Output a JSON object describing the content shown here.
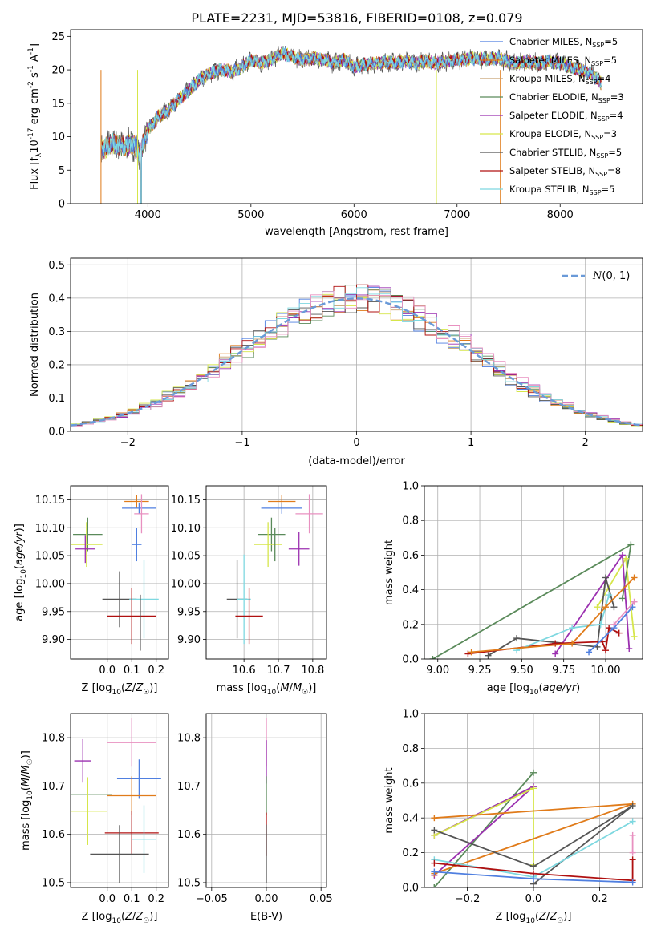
{
  "title": "PLATE=2231, MJD=53816, FIBERID=0108, z=0.079",
  "colors": {
    "chabrier_miles": "#4f7fe0",
    "salpeter_miles": "#e07b1a",
    "kroupa_miles": "#c8a070",
    "chabrier_elodie": "#5a8a5a",
    "salpeter_elodie": "#9b30b0",
    "kroupa_elodie": "#d6e64a",
    "chabrier_stelib": "#555555",
    "salpeter_stelib": "#b01010",
    "kroupa_stelib": "#7ed8e0",
    "extra_pink": "#e890c0",
    "gauss": "#6a9ad8",
    "grid": "#b0b0b0"
  },
  "chart_data": [
    {
      "type": "line",
      "id": "spectrum",
      "xlabel": "wavelength [Angstrom, rest frame]",
      "ylabel": "Flux [f",
      "ylabel_parts": [
        "10",
        "-17",
        " erg cm",
        "-2",
        " s",
        "-1",
        " A",
        "-1",
        "]"
      ],
      "xlim": [
        3250,
        8800
      ],
      "ylim": [
        0,
        26
      ],
      "xticks": [
        4000,
        5000,
        6000,
        7000,
        8000
      ],
      "yticks": [
        0,
        5,
        10,
        15,
        20,
        25
      ],
      "grid": false,
      "legend_position": "right",
      "legend": [
        {
          "name": "Chabrier MILES, N",
          "n": "5",
          "color_key": "chabrier_miles"
        },
        {
          "name": "Salpeter MILES, N",
          "n": "5",
          "color_key": "salpeter_miles"
        },
        {
          "name": "Kroupa MILES, N",
          "n": "4",
          "color_key": "kroupa_miles"
        },
        {
          "name": "Chabrier ELODIE, N",
          "n": "3",
          "color_key": "chabrier_elodie"
        },
        {
          "name": "Salpeter ELODIE, N",
          "n": "4",
          "color_key": "salpeter_elodie"
        },
        {
          "name": "Kroupa ELODIE, N",
          "n": "3",
          "color_key": "kroupa_elodie"
        },
        {
          "name": "Chabrier STELIB, N",
          "n": "5",
          "color_key": "chabrier_stelib"
        },
        {
          "name": "Salpeter STELIB, N",
          "n": "8",
          "color_key": "salpeter_stelib"
        },
        {
          "name": "Kroupa STELIB, N",
          "n": "5",
          "color_key": "kroupa_stelib"
        }
      ],
      "legend_sub": "SSP",
      "continuum": [
        [
          3550,
          8
        ],
        [
          3650,
          9
        ],
        [
          3750,
          8.5
        ],
        [
          3850,
          9
        ],
        [
          3920,
          7.5
        ],
        [
          4000,
          11
        ],
        [
          4100,
          13
        ],
        [
          4200,
          14
        ],
        [
          4300,
          15.5
        ],
        [
          4400,
          17
        ],
        [
          4500,
          18.5
        ],
        [
          4600,
          19.5
        ],
        [
          4700,
          20
        ],
        [
          4800,
          19.8
        ],
        [
          4900,
          20.2
        ],
        [
          5000,
          21.5
        ],
        [
          5100,
          21
        ],
        [
          5200,
          21.5
        ],
        [
          5300,
          22.5
        ],
        [
          5400,
          22
        ],
        [
          5500,
          21.5
        ],
        [
          5600,
          21.8
        ],
        [
          5700,
          21.5
        ],
        [
          5800,
          21
        ],
        [
          5900,
          21.5
        ],
        [
          6000,
          20.5
        ],
        [
          6100,
          20.8
        ],
        [
          6200,
          21
        ],
        [
          6300,
          21.2
        ],
        [
          6400,
          21
        ],
        [
          6500,
          21.3
        ],
        [
          6600,
          21
        ],
        [
          6700,
          21.3
        ],
        [
          6800,
          21
        ],
        [
          6900,
          21.2
        ],
        [
          7000,
          21.5
        ],
        [
          7100,
          21.6
        ],
        [
          7200,
          21.7
        ],
        [
          7300,
          21.5
        ],
        [
          7400,
          21.8
        ],
        [
          7500,
          21.2
        ],
        [
          7600,
          21
        ],
        [
          7700,
          21.2
        ],
        [
          7800,
          21
        ],
        [
          7900,
          21.3
        ],
        [
          8000,
          21
        ],
        [
          8100,
          20.5
        ],
        [
          8200,
          20
        ],
        [
          8300,
          19.5
        ],
        [
          8400,
          18
        ]
      ]
    },
    {
      "type": "bar",
      "id": "residuals",
      "xlabel": "(data-model)/error",
      "ylabel": "Normed distribution",
      "xlim": [
        -2.5,
        2.5
      ],
      "ylim": [
        0,
        0.52
      ],
      "xticks": [
        -2,
        -1,
        0,
        1,
        2
      ],
      "yticks": [
        0.0,
        0.1,
        0.2,
        0.3,
        0.4,
        0.5
      ],
      "grid": true,
      "legend": [
        {
          "name": "N(0,1)",
          "color_key": "gauss",
          "style": "dashed"
        }
      ],
      "legend_position": "top-right",
      "bin_width": 0.1
    },
    {
      "type": "scatter",
      "id": "age_vs_Z",
      "xlabel": "Z [log",
      "xlabel_tail": "(Z/Z",
      "ylabel": "age [log",
      "ylabel_tail": "(age/yr)]",
      "xlim": [
        -0.15,
        0.25
      ],
      "ylim": [
        9.865,
        10.175
      ],
      "xticks": [
        0.0,
        0.1,
        0.2
      ],
      "yticks": [
        9.9,
        9.95,
        10.0,
        10.05,
        10.1,
        10.15
      ],
      "grid": true,
      "points": [
        {
          "x": 0.12,
          "y": 10.147,
          "xerr": 0.05,
          "yerr": 0.012,
          "color_key": "salpeter_miles"
        },
        {
          "x": 0.13,
          "y": 10.135,
          "xerr": 0.07,
          "yerr": 0.01,
          "color_key": "chabrier_miles"
        },
        {
          "x": 0.14,
          "y": 10.125,
          "xerr": 0.03,
          "yerr": 0.035,
          "color_key": "extra_pink"
        },
        {
          "x": -0.08,
          "y": 10.088,
          "xerr": 0.06,
          "yerr": 0.03,
          "color_key": "chabrier_elodie"
        },
        {
          "x": -0.085,
          "y": 10.07,
          "xerr": 0.065,
          "yerr": 0.04,
          "color_key": "kroupa_elodie"
        },
        {
          "x": -0.09,
          "y": 10.062,
          "xerr": 0.04,
          "yerr": 0.025,
          "color_key": "salpeter_elodie"
        },
        {
          "x": 0.12,
          "y": 10.07,
          "xerr": 0.02,
          "yerr": 0.03,
          "color_key": "chabrier_miles"
        },
        {
          "x": 0.05,
          "y": 9.972,
          "xerr": 0.07,
          "yerr": 0.05,
          "color_key": "chabrier_stelib"
        },
        {
          "x": 0.15,
          "y": 9.972,
          "xerr": 0.06,
          "yerr": 0.07,
          "color_key": "kroupa_stelib"
        },
        {
          "x": 0.1,
          "y": 9.942,
          "xerr": 0.1,
          "yerr": 0.05,
          "color_key": "salpeter_stelib"
        },
        {
          "x": 0.135,
          "y": 9.93,
          "xerr": 0.0,
          "yerr": 0.05,
          "color_key": "chabrier_stelib"
        }
      ]
    },
    {
      "type": "scatter",
      "id": "age_vs_mass",
      "xlabel": "mass [log",
      "xlabel_tail": "(M/M",
      "xlim": [
        10.49,
        10.84
      ],
      "ylim": [
        9.865,
        10.175
      ],
      "xticks": [
        10.6,
        10.7,
        10.8
      ],
      "yticks": [
        9.9,
        9.95,
        10.0,
        10.05,
        10.1,
        10.15
      ],
      "grid": true,
      "points": [
        {
          "x": 10.71,
          "y": 10.147,
          "xerr": 0.04,
          "yerr": 0.012,
          "color_key": "salpeter_miles"
        },
        {
          "x": 10.71,
          "y": 10.135,
          "xerr": 0.06,
          "yerr": 0.01,
          "color_key": "chabrier_miles"
        },
        {
          "x": 10.79,
          "y": 10.125,
          "xerr": 0.04,
          "yerr": 0.035,
          "color_key": "extra_pink"
        },
        {
          "x": 10.68,
          "y": 10.088,
          "xerr": 0.04,
          "yerr": 0.03,
          "color_key": "chabrier_elodie"
        },
        {
          "x": 10.67,
          "y": 10.07,
          "xerr": 0.04,
          "yerr": 0.04,
          "color_key": "kroupa_elodie"
        },
        {
          "x": 10.76,
          "y": 10.062,
          "xerr": 0.03,
          "yerr": 0.03,
          "color_key": "salpeter_elodie"
        },
        {
          "x": 10.69,
          "y": 10.07,
          "xerr": 0.0,
          "yerr": 0.03,
          "color_key": "chabrier_elodie"
        },
        {
          "x": 10.58,
          "y": 9.972,
          "xerr": 0.03,
          "yerr": 0.07,
          "color_key": "chabrier_stelib"
        },
        {
          "x": 10.6,
          "y": 9.972,
          "xerr": 0.02,
          "yerr": 0.08,
          "color_key": "kroupa_stelib"
        },
        {
          "x": 10.615,
          "y": 9.942,
          "xerr": 0.04,
          "yerr": 0.05,
          "color_key": "salpeter_stelib"
        }
      ]
    },
    {
      "type": "line",
      "id": "weight_vs_age",
      "xlabel": "age  [log",
      "xlabel_tail": "(age/yr)]",
      "ylabel": "mass weight",
      "xlim": [
        8.92,
        10.22
      ],
      "ylim": [
        0,
        1
      ],
      "xticks": [
        9.0,
        9.25,
        9.5,
        9.75,
        10.0
      ],
      "yticks": [
        0.0,
        0.2,
        0.4,
        0.6,
        0.8,
        1.0
      ],
      "grid": true,
      "series": [
        {
          "color_key": "chabrier_elodie",
          "x": [
            8.97,
            10.15,
            10.1
          ],
          "y": [
            0.0,
            0.66,
            0.35
          ]
        },
        {
          "color_key": "kroupa_elodie",
          "x": [
            9.95,
            10.12,
            10.17
          ],
          "y": [
            0.3,
            0.58,
            0.13
          ]
        },
        {
          "color_key": "salpeter_elodie",
          "x": [
            9.7,
            10.1,
            10.14
          ],
          "y": [
            0.03,
            0.6,
            0.06
          ]
        },
        {
          "color_key": "chabrier_stelib",
          "x": [
            9.3,
            9.47,
            9.95,
            10.0,
            10.05
          ],
          "y": [
            0.02,
            0.12,
            0.07,
            0.47,
            0.3
          ]
        },
        {
          "color_key": "salpeter_stelib",
          "x": [
            9.18,
            9.7,
            9.98,
            10.0,
            10.02,
            10.08
          ],
          "y": [
            0.03,
            0.09,
            0.1,
            0.05,
            0.18,
            0.15
          ]
        },
        {
          "color_key": "kroupa_stelib",
          "x": [
            9.47,
            9.8,
            9.97,
            10.02
          ],
          "y": [
            0.05,
            0.18,
            0.2,
            0.37
          ]
        },
        {
          "color_key": "salpeter_miles",
          "x": [
            9.2,
            9.8,
            10.0,
            10.17
          ],
          "y": [
            0.04,
            0.09,
            0.3,
            0.47
          ]
        },
        {
          "color_key": "chabrier_miles",
          "x": [
            9.9,
            10.05,
            10.16
          ],
          "y": [
            0.04,
            0.18,
            0.3
          ]
        },
        {
          "color_key": "extra_pink",
          "x": [
            10.05,
            10.17
          ],
          "y": [
            0.2,
            0.33
          ]
        }
      ]
    },
    {
      "type": "scatter",
      "id": "mass_vs_Z",
      "xlabel": "Z [log",
      "xlabel_tail": "(Z/Z",
      "ylabel": "mass [log",
      "ylabel_tail": "(M/M",
      "xlim": [
        -0.15,
        0.25
      ],
      "ylim": [
        10.49,
        10.85
      ],
      "xticks": [
        0.0,
        0.1,
        0.2
      ],
      "yticks": [
        10.5,
        10.6,
        10.7,
        10.8
      ],
      "grid": true,
      "points": [
        {
          "x": 0.1,
          "y": 10.79,
          "xerr": 0.1,
          "yerr": 0.05,
          "color_key": "extra_pink"
        },
        {
          "x": -0.1,
          "y": 10.752,
          "xerr": 0.035,
          "yerr": 0.045,
          "color_key": "salpeter_elodie"
        },
        {
          "x": 0.13,
          "y": 10.715,
          "xerr": 0.09,
          "yerr": 0.04,
          "color_key": "chabrier_miles"
        },
        {
          "x": -0.08,
          "y": 10.683,
          "xerr": 0.1,
          "yerr": 0.035,
          "color_key": "chabrier_elodie"
        },
        {
          "x": 0.1,
          "y": 10.68,
          "xerr": 0.1,
          "yerr": 0.04,
          "color_key": "salpeter_miles"
        },
        {
          "x": -0.08,
          "y": 10.648,
          "xerr": 0.08,
          "yerr": 0.07,
          "color_key": "kroupa_elodie"
        },
        {
          "x": 0.1,
          "y": 10.603,
          "xerr": 0.11,
          "yerr": 0.045,
          "color_key": "salpeter_stelib"
        },
        {
          "x": 0.15,
          "y": 10.59,
          "xerr": 0.05,
          "yerr": 0.07,
          "color_key": "kroupa_stelib"
        },
        {
          "x": 0.05,
          "y": 10.559,
          "xerr": 0.12,
          "yerr": 0.06,
          "color_key": "chabrier_stelib"
        }
      ]
    },
    {
      "type": "scatter",
      "id": "mass_vs_ebv",
      "xlabel": "E(B-V)",
      "xlim": [
        -0.055,
        0.055
      ],
      "ylim": [
        10.49,
        10.85
      ],
      "xticks": [
        -0.05,
        0.0,
        0.05
      ],
      "xticklabels": [
        "−0.05",
        "0.00",
        "0.05"
      ],
      "yticks": [
        10.5,
        10.6,
        10.7,
        10.8
      ],
      "grid": true,
      "points": [
        {
          "x": 0.0,
          "y": 10.79,
          "xerr": 0,
          "yerr": 0.05,
          "color_key": "extra_pink"
        },
        {
          "x": 0.0,
          "y": 10.75,
          "xerr": 0,
          "yerr": 0.045,
          "color_key": "salpeter_elodie"
        },
        {
          "x": 0.0,
          "y": 10.68,
          "xerr": 0,
          "yerr": 0.04,
          "color_key": "chabrier_elodie"
        },
        {
          "x": 0.0,
          "y": 10.6,
          "xerr": 0,
          "yerr": 0.045,
          "color_key": "salpeter_stelib"
        },
        {
          "x": 0.0,
          "y": 10.56,
          "xerr": 0,
          "yerr": 0.06,
          "color_key": "chabrier_stelib"
        }
      ]
    },
    {
      "type": "line",
      "id": "weight_vs_Z",
      "xlabel": "Z [log",
      "xlabel_tail": "(Z/Z",
      "ylabel": "mass weight",
      "xlim": [
        -0.33,
        0.33
      ],
      "ylim": [
        0,
        1
      ],
      "xticks": [
        -0.2,
        0.0,
        0.2
      ],
      "xticklabels": [
        "−0.2",
        "0.0",
        "0.2"
      ],
      "yticks": [
        0.0,
        0.2,
        0.4,
        0.6,
        0.8,
        1.0
      ],
      "grid": true,
      "series": [
        {
          "color_key": "chabrier_elodie",
          "x": [
            -0.3,
            0.0,
            -0.3
          ],
          "y": [
            0.0,
            0.66,
            0.0
          ]
        },
        {
          "color_key": "salpeter_elodie",
          "x": [
            -0.3,
            0.0,
            -0.3
          ],
          "y": [
            0.3,
            0.58,
            0.07
          ]
        },
        {
          "color_key": "kroupa_elodie",
          "x": [
            -0.3,
            0.0,
            0.0
          ],
          "y": [
            0.3,
            0.57,
            0.13
          ]
        },
        {
          "color_key": "salpeter_miles",
          "x": [
            -0.3,
            0.3,
            -0.3
          ],
          "y": [
            0.08,
            0.48,
            0.4
          ]
        },
        {
          "color_key": "chabrier_stelib",
          "x": [
            -0.3,
            0.0,
            0.3,
            0.0
          ],
          "y": [
            0.33,
            0.12,
            0.47,
            0.02
          ]
        },
        {
          "color_key": "kroupa_stelib",
          "x": [
            -0.3,
            0.0,
            0.3
          ],
          "y": [
            0.16,
            0.06,
            0.38
          ]
        },
        {
          "color_key": "salpeter_stelib",
          "x": [
            -0.3,
            0.0,
            0.3,
            0.3
          ],
          "y": [
            0.14,
            0.08,
            0.04,
            0.16
          ]
        },
        {
          "color_key": "chabrier_miles",
          "x": [
            -0.3,
            0.0,
            0.3
          ],
          "y": [
            0.09,
            0.05,
            0.03
          ]
        },
        {
          "color_key": "extra_pink",
          "x": [
            0.3,
            0.3
          ],
          "y": [
            0.2,
            0.3
          ]
        }
      ]
    }
  ]
}
